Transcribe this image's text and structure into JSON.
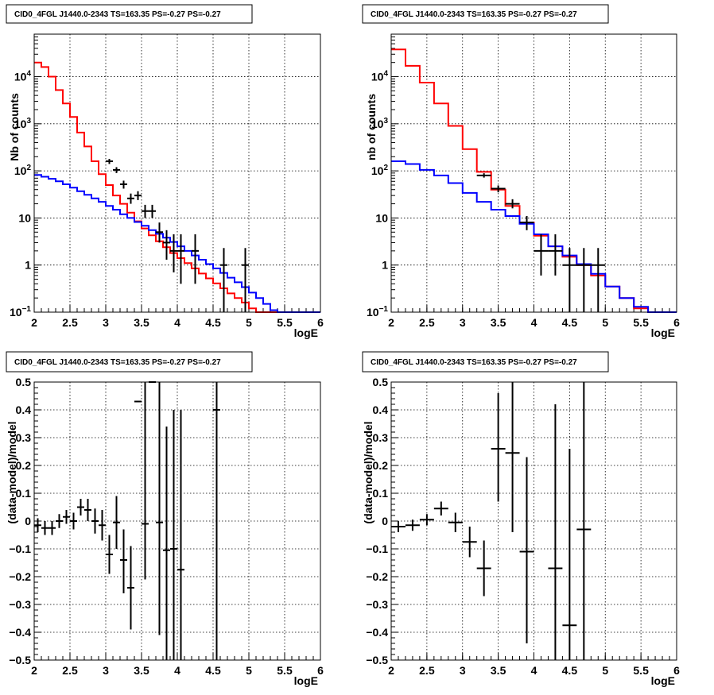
{
  "chart_data": [
    {
      "type": "line",
      "title": "CID0_4FGL J1440.0-2343 TS=163.35 PS=-0.27 PS=-0.27",
      "xlabel": "logE",
      "ylabel": "Nb of counts",
      "xlim": [
        2,
        6
      ],
      "ylim": [
        0.1,
        80000
      ],
      "ylog": true,
      "grid": true,
      "x_ticks": [
        "2",
        "2.5",
        "3",
        "3.5",
        "4",
        "4.5",
        "5",
        "5.5",
        "6"
      ],
      "y_ticks": [
        {
          "v": 0.1,
          "base": "10",
          "exp": "−1"
        },
        {
          "v": 1,
          "label": "1"
        },
        {
          "v": 10,
          "label": "10"
        },
        {
          "v": 100,
          "base": "10",
          "exp": "2"
        },
        {
          "v": 1000,
          "base": "10",
          "exp": "3"
        },
        {
          "v": 10000,
          "base": "10",
          "exp": "4"
        }
      ],
      "series": [
        {
          "color": "#ff0000",
          "style": "step",
          "edges_start": 2.0,
          "bin_width": 0.1,
          "values": [
            20000,
            16000,
            10000,
            5200,
            2700,
            1400,
            650,
            330,
            160,
            85,
            50,
            30,
            20,
            13,
            8.5,
            6,
            4.3,
            3.2,
            2.4,
            1.8,
            1.4,
            1.1,
            0.85,
            0.66,
            0.52,
            0.41,
            0.32,
            0.25,
            0.2,
            0.16,
            0.12,
            0.1,
            0.1,
            0.1,
            0.1,
            0.1,
            0.1,
            0.1,
            0.1,
            0.1
          ]
        },
        {
          "color": "#0000ff",
          "style": "step",
          "edges_start": 2.0,
          "bin_width": 0.1,
          "values": [
            82,
            75,
            68,
            60,
            52,
            44,
            37,
            31,
            26,
            22,
            18,
            15,
            12,
            10,
            8.2,
            6.8,
            5.5,
            4.6,
            3.8,
            3.1,
            2.5,
            2.0,
            1.6,
            1.3,
            1.05,
            0.85,
            0.68,
            0.54,
            0.43,
            0.34,
            0.26,
            0.2,
            0.15,
            0.11,
            0.1,
            0.1,
            0.1,
            0.1,
            0.1,
            0.1
          ]
        },
        {
          "color": "#000000",
          "style": "points",
          "half_width": 0.05,
          "points": [
            [
              3.05,
              160,
              140,
              180
            ],
            [
              3.15,
              105,
              90,
              120
            ],
            [
              3.25,
              52,
              42,
              62
            ],
            [
              3.35,
              26,
              20,
              33
            ],
            [
              3.45,
              30,
              24,
              37
            ],
            [
              3.55,
              14,
              10,
              19
            ],
            [
              3.65,
              14,
              10,
              19
            ],
            [
              3.75,
              5,
              3,
              8
            ],
            [
              3.85,
              3,
              1.3,
              5.5
            ],
            [
              3.95,
              2,
              0.7,
              4.5
            ],
            [
              4.05,
              2,
              0.4,
              4.5
            ],
            [
              4.25,
              2,
              0.4,
              4.5
            ],
            [
              4.65,
              1,
              0.1,
              2.3
            ],
            [
              4.95,
              1,
              0.1,
              2.3
            ]
          ]
        }
      ]
    },
    {
      "type": "line",
      "title": "CID0_4FGL J1440.0-2343 TS=163.35 PS=-0.27 PS=-0.27",
      "xlabel": "logE",
      "ylabel": "nb of counts",
      "xlim": [
        2,
        6
      ],
      "ylim": [
        0.1,
        80000
      ],
      "ylog": true,
      "grid": true,
      "x_ticks": [
        "2",
        "2.5",
        "3",
        "3.5",
        "4",
        "4.5",
        "5",
        "5.5",
        "6"
      ],
      "y_ticks": [
        {
          "v": 0.1,
          "base": "10",
          "exp": "−1"
        },
        {
          "v": 1,
          "label": "1"
        },
        {
          "v": 10,
          "label": "10"
        },
        {
          "v": 100,
          "base": "10",
          "exp": "2"
        },
        {
          "v": 1000,
          "base": "10",
          "exp": "3"
        },
        {
          "v": 10000,
          "base": "10",
          "exp": "4"
        }
      ],
      "series": [
        {
          "color": "#ff0000",
          "style": "step",
          "edges_start": 2.0,
          "bin_width": 0.2,
          "values": [
            38000,
            17000,
            7500,
            2700,
            900,
            290,
            95,
            40,
            18,
            8,
            4.2,
            2.5,
            1.5,
            1.0,
            0.6,
            0.35,
            0.2,
            0.12,
            0.1,
            0.1
          ]
        },
        {
          "color": "#0000ff",
          "style": "step",
          "edges_start": 2.0,
          "bin_width": 0.2,
          "values": [
            160,
            140,
            105,
            80,
            55,
            34,
            22,
            15,
            11,
            7.5,
            4.5,
            2.5,
            1.6,
            1.05,
            0.65,
            0.35,
            0.2,
            0.13,
            0.1,
            0.1
          ]
        },
        {
          "color": "#000000",
          "style": "points",
          "half_width": 0.1,
          "points": [
            [
              3.3,
              80,
              72,
              89
            ],
            [
              3.5,
              42,
              35,
              49
            ],
            [
              3.7,
              20,
              16,
              25
            ],
            [
              3.9,
              8,
              5.5,
              11
            ],
            [
              4.1,
              2,
              0.6,
              4.5
            ],
            [
              4.3,
              2,
              0.6,
              4.5
            ],
            [
              4.5,
              1,
              0.1,
              2.3
            ],
            [
              4.7,
              1,
              0.1,
              2.3
            ],
            [
              4.9,
              1,
              0.1,
              2.3
            ]
          ]
        }
      ]
    },
    {
      "type": "scatter",
      "title": "CID0_4FGL J1440.0-2343 TS=163.35 PS=-0.27 PS=-0.27",
      "xlabel": "logE",
      "ylabel": "(data-model)/model",
      "xlim": [
        2,
        6
      ],
      "ylim": [
        -0.5,
        0.5
      ],
      "ylog": false,
      "grid": true,
      "x_ticks": [
        "2",
        "2.5",
        "3",
        "3.5",
        "4",
        "4.5",
        "5",
        "5.5",
        "6"
      ],
      "y_ticks": [
        {
          "v": -0.5,
          "label": "−0.5"
        },
        {
          "v": -0.4,
          "label": "−0.4"
        },
        {
          "v": -0.3,
          "label": "−0.3"
        },
        {
          "v": -0.2,
          "label": "−0.2"
        },
        {
          "v": -0.1,
          "label": "−0.1"
        },
        {
          "v": 0,
          "label": "0"
        },
        {
          "v": 0.1,
          "label": "0.1"
        },
        {
          "v": 0.2,
          "label": "0.2"
        },
        {
          "v": 0.3,
          "label": "0.3"
        },
        {
          "v": 0.4,
          "label": "0.4"
        },
        {
          "v": 0.5,
          "label": "0.5"
        }
      ],
      "series": [
        {
          "color": "#000000",
          "style": "points",
          "half_width": 0.05,
          "points": [
            [
              2.05,
              -0.015,
              -0.04,
              0.01
            ],
            [
              2.15,
              -0.025,
              -0.05,
              0.0
            ],
            [
              2.25,
              -0.025,
              -0.05,
              0.0
            ],
            [
              2.35,
              0.0,
              -0.025,
              0.025
            ],
            [
              2.45,
              0.015,
              -0.01,
              0.04
            ],
            [
              2.55,
              0.0,
              -0.03,
              0.03
            ],
            [
              2.65,
              0.05,
              0.02,
              0.08
            ],
            [
              2.75,
              0.04,
              0.0,
              0.08
            ],
            [
              2.85,
              0.0,
              -0.045,
              0.045
            ],
            [
              2.95,
              -0.015,
              -0.07,
              0.04
            ],
            [
              3.05,
              -0.12,
              -0.19,
              -0.05
            ],
            [
              3.15,
              -0.005,
              -0.1,
              0.09
            ],
            [
              3.25,
              -0.14,
              -0.26,
              -0.03
            ],
            [
              3.35,
              -0.24,
              -0.39,
              -0.09
            ],
            [
              3.45,
              0.43,
              0.5,
              0.5
            ],
            [
              3.55,
              -0.01,
              -0.21,
              0.5
            ],
            [
              3.65,
              0.5,
              0.5,
              0.5
            ],
            [
              3.75,
              -0.005,
              -0.41,
              0.5
            ],
            [
              3.85,
              -0.105,
              -0.5,
              0.34
            ],
            [
              3.95,
              -0.1,
              -0.5,
              0.4
            ],
            [
              4.05,
              -0.175,
              -0.5,
              0.4
            ],
            [
              4.55,
              0.4,
              -0.5,
              0.5
            ]
          ]
        }
      ]
    },
    {
      "type": "scatter",
      "title": "CID0_4FGL J1440.0-2343 TS=163.35 PS=-0.27 PS=-0.27",
      "xlabel": "logE",
      "ylabel": "(data-model)/model",
      "xlim": [
        2,
        6
      ],
      "ylim": [
        -0.5,
        0.5
      ],
      "ylog": false,
      "grid": true,
      "x_ticks": [
        "2",
        "2.5",
        "3",
        "3.5",
        "4",
        "4.5",
        "5",
        "5.5",
        "6"
      ],
      "y_ticks": [
        {
          "v": -0.5,
          "label": "−0.5"
        },
        {
          "v": -0.4,
          "label": "−0.4"
        },
        {
          "v": -0.3,
          "label": "−0.3"
        },
        {
          "v": -0.2,
          "label": "−0.2"
        },
        {
          "v": -0.1,
          "label": "−0.1"
        },
        {
          "v": 0,
          "label": "0"
        },
        {
          "v": 0.1,
          "label": "0.1"
        },
        {
          "v": 0.2,
          "label": "0.2"
        },
        {
          "v": 0.3,
          "label": "0.3"
        },
        {
          "v": 0.4,
          "label": "0.4"
        },
        {
          "v": 0.5,
          "label": "0.5"
        }
      ],
      "series": [
        {
          "color": "#000000",
          "style": "points",
          "half_width": 0.1,
          "points": [
            [
              2.1,
              -0.02,
              -0.04,
              0.0
            ],
            [
              2.3,
              -0.015,
              -0.035,
              0.005
            ],
            [
              2.5,
              0.005,
              -0.015,
              0.025
            ],
            [
              2.7,
              0.045,
              0.02,
              0.07
            ],
            [
              2.9,
              -0.005,
              -0.04,
              0.03
            ],
            [
              3.1,
              -0.075,
              -0.13,
              -0.02
            ],
            [
              3.3,
              -0.17,
              -0.27,
              -0.07
            ],
            [
              3.5,
              0.26,
              0.07,
              0.46
            ],
            [
              3.7,
              0.245,
              -0.04,
              0.5
            ],
            [
              3.9,
              -0.11,
              -0.44,
              0.23
            ],
            [
              4.3,
              -0.17,
              -0.5,
              0.42
            ],
            [
              4.5,
              -0.375,
              -0.5,
              0.26
            ],
            [
              4.7,
              -0.03,
              -0.5,
              0.5
            ]
          ]
        }
      ]
    }
  ]
}
